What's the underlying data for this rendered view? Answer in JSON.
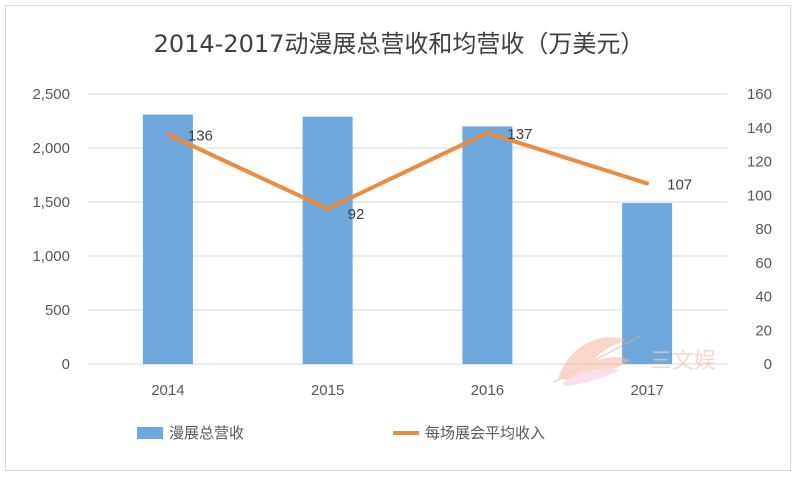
{
  "chart_data": {
    "type": "bar+line",
    "title": "2014-2017动漫展总营收和均营收（万美元）",
    "categories": [
      "2014",
      "2015",
      "2016",
      "2017"
    ],
    "series": [
      {
        "name": "漫展总营收",
        "type": "bar",
        "axis": "left",
        "values": [
          2310,
          2290,
          2200,
          1490
        ],
        "color": "#6fa8dc"
      },
      {
        "name": "每场展会平均收入",
        "type": "line",
        "axis": "right",
        "values": [
          136,
          92,
          137,
          107
        ],
        "color": "#ed8b3f"
      }
    ],
    "left_axis": {
      "ylim": [
        0,
        2500
      ],
      "ticks": [
        0,
        500,
        1000,
        1500,
        2000,
        2500
      ],
      "tick_labels": [
        "0",
        "500",
        "1,000",
        "1,500",
        "2,000",
        "2,500"
      ]
    },
    "right_axis": {
      "ylim": [
        0,
        160
      ],
      "ticks": [
        0,
        20,
        40,
        60,
        80,
        100,
        120,
        140,
        160
      ],
      "tick_labels": [
        "0",
        "20",
        "40",
        "60",
        "80",
        "100",
        "120",
        "140",
        "160"
      ]
    },
    "data_labels": [
      "136",
      "92",
      "137",
      "107"
    ],
    "grid": true,
    "legend_position": "bottom"
  },
  "watermark": {
    "text": "三文娱",
    "logo": "feather-logo"
  }
}
